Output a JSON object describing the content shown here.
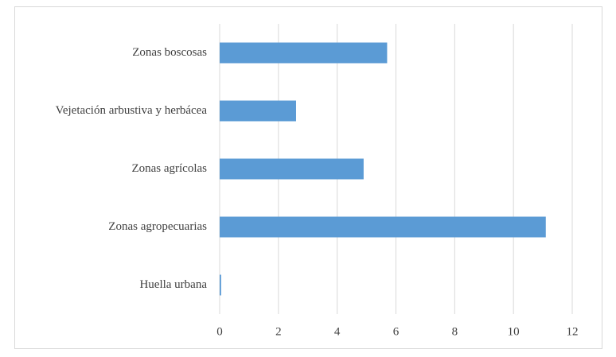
{
  "chart_data": {
    "type": "hbar",
    "categories": [
      "Zonas boscosas",
      "Vejetación arbustiva y herbácea",
      "Zonas agrícolas",
      "Zonas agropecuarias",
      "Huella urbana"
    ],
    "values": [
      5.7,
      2.6,
      4.9,
      11.1,
      0.05
    ],
    "color": "#5b9bd5",
    "xlim": [
      0,
      12
    ],
    "xticks": [
      0,
      2,
      4,
      6,
      8,
      10,
      12
    ],
    "grid": true
  }
}
